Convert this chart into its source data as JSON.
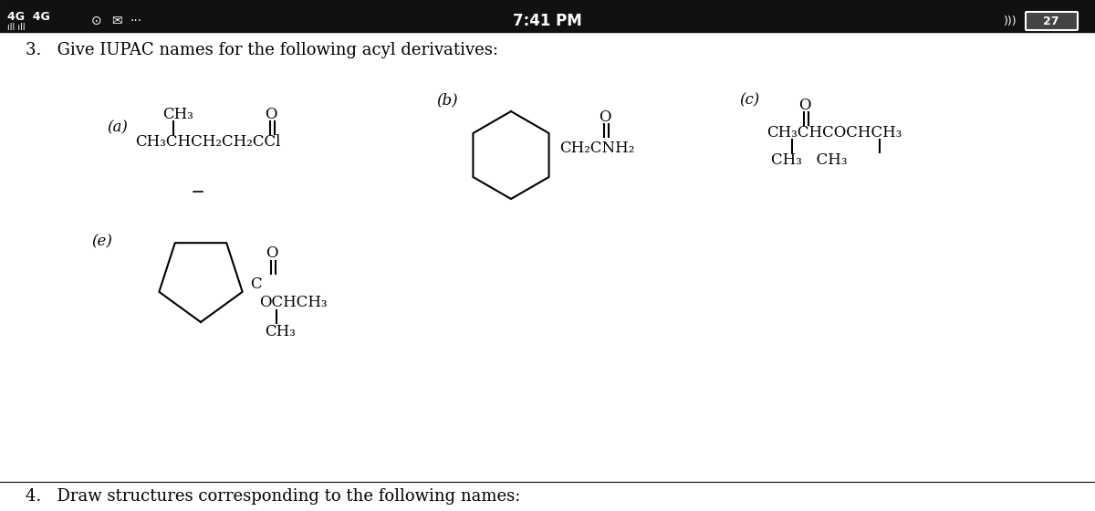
{
  "bg_color": "#ffffff",
  "status_bar_bg": "#111111",
  "time_text": "7:41 PM",
  "battery_num": "27",
  "question_text": "3.   Give IUPAC names for the following acyl derivatives:",
  "footer_text": "4.   Draw structures corresponding to the following names:",
  "label_a": "(a)",
  "label_b": "(b)",
  "label_c": "(c)",
  "label_e": "(e)",
  "font_size_struct": 12,
  "font_size_label": 12,
  "font_size_question": 13,
  "font_size_status": 10
}
